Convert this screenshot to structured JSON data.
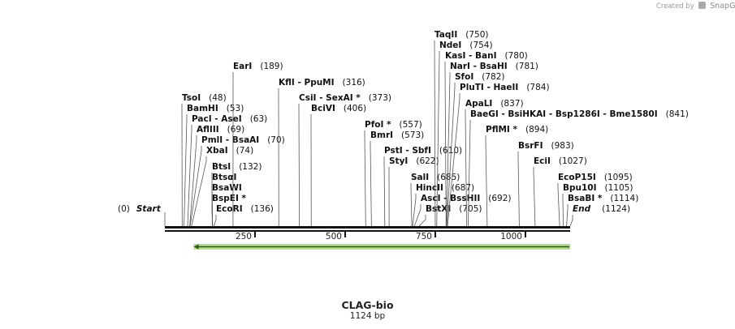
{
  "credit": {
    "prefix": "Created by",
    "brand": "SnapGene"
  },
  "sequence": {
    "name": "CLAG-bio",
    "length_label": "1124 bp",
    "length": 1124
  },
  "ends": [
    {
      "position_label": "(0)",
      "name": "Start"
    },
    {
      "position_label": "(1124)",
      "name": "End"
    }
  ],
  "ticks": [
    "250",
    "500",
    "750",
    "1000"
  ],
  "tick_positions": [
    250,
    500,
    750,
    1000
  ],
  "feature": {
    "name": "feature-arrow",
    "start": 80,
    "end": 1124,
    "color": "#7ec83a",
    "direction": "reverse"
  },
  "sites": [
    {
      "label": "TsoI",
      "pos": "(48)",
      "bp": 48
    },
    {
      "label": "BamHI",
      "pos": "(53)",
      "bp": 53
    },
    {
      "label": "PacI  - AseI",
      "pos": "(63)",
      "bp": 63
    },
    {
      "label": "AflIII",
      "pos": "(69)",
      "bp": 69
    },
    {
      "label": "PmlI  - BsaAI",
      "pos": "(70)",
      "bp": 70
    },
    {
      "label": "XbaI",
      "pos": "(74)",
      "bp": 74
    },
    {
      "label": "BtsI",
      "pos": "(132)",
      "bp": 132
    },
    {
      "label": "BtsαI",
      "pos": "",
      "bp": 132
    },
    {
      "label": "BsaWI",
      "pos": "",
      "bp": 132
    },
    {
      "label": "BspEI *",
      "pos": "",
      "bp": 132
    },
    {
      "label": "EcoRI",
      "pos": "(136)",
      "bp": 136
    },
    {
      "label": "EarI",
      "pos": "(189)",
      "bp": 189
    },
    {
      "label": "KflI  - PpuMI",
      "pos": "(316)",
      "bp": 316
    },
    {
      "label": "CsiI  - SexAI *",
      "pos": "(373)",
      "bp": 373
    },
    {
      "label": "BciVI",
      "pos": "(406)",
      "bp": 406
    },
    {
      "label": "PfoI *",
      "pos": "(557)",
      "bp": 557
    },
    {
      "label": "BmrI",
      "pos": "(573)",
      "bp": 573
    },
    {
      "label": "PstI  - SbfI",
      "pos": "(610)",
      "bp": 610
    },
    {
      "label": "StyI",
      "pos": "(622)",
      "bp": 622
    },
    {
      "label": "SalI",
      "pos": "(685)",
      "bp": 685
    },
    {
      "label": "HincII",
      "pos": "(687)",
      "bp": 687
    },
    {
      "label": "AscI  - BssHII",
      "pos": "(692)",
      "bp": 692
    },
    {
      "label": "BstXI",
      "pos": "(705)",
      "bp": 705
    },
    {
      "label": "TaqII",
      "pos": "(750)",
      "bp": 750
    },
    {
      "label": "NdeI",
      "pos": "(754)",
      "bp": 754
    },
    {
      "label": "KasI  - BanI",
      "pos": "(780)",
      "bp": 780
    },
    {
      "label": "NarI  - BsaHI",
      "pos": "(781)",
      "bp": 781
    },
    {
      "label": "SfoI",
      "pos": "(782)",
      "bp": 782
    },
    {
      "label": "PluTI  - HaeII",
      "pos": "(784)",
      "bp": 784
    },
    {
      "label": "ApaLI",
      "pos": "(837)",
      "bp": 837
    },
    {
      "label": "BaeGI  - BsiHKAI  - Bsp1286I  - Bme1580I",
      "pos": "(841)",
      "bp": 841
    },
    {
      "label": "PflMI *",
      "pos": "(894)",
      "bp": 894
    },
    {
      "label": "BsrFI",
      "pos": "(983)",
      "bp": 983
    },
    {
      "label": "EciI",
      "pos": "(1027)",
      "bp": 1027
    },
    {
      "label": "EcoP15I",
      "pos": "(1095)",
      "bp": 1095
    },
    {
      "label": "Bpu10I",
      "pos": "(1105)",
      "bp": 1105
    },
    {
      "label": "BsaBI *",
      "pos": "(1114)",
      "bp": 1114
    }
  ]
}
